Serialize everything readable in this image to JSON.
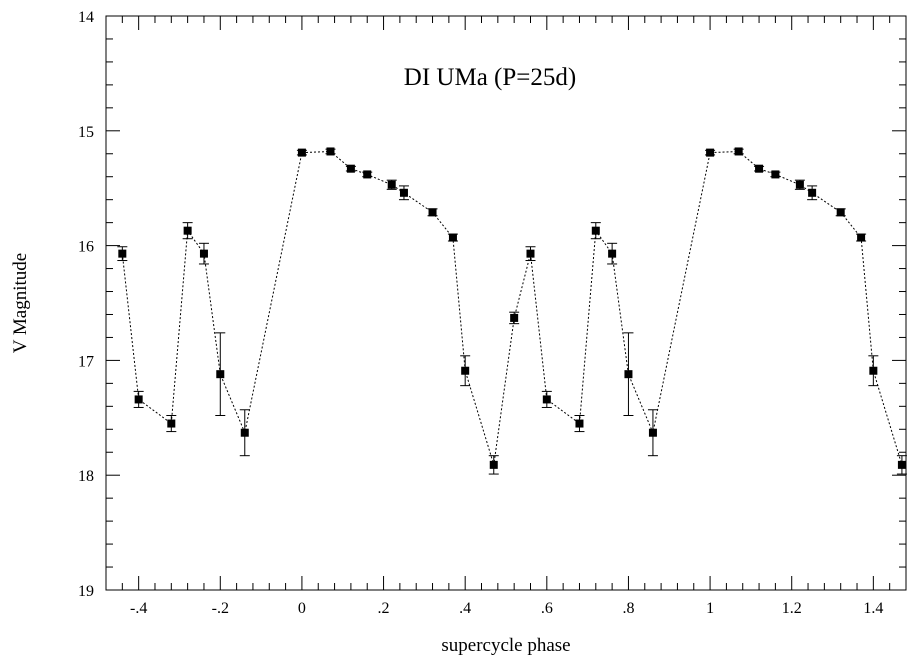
{
  "chart_data": {
    "type": "scatter",
    "title": "DI UMa (P=25d)",
    "xlabel": "supercycle phase",
    "ylabel": "V Magnitude",
    "xlim": [
      -0.48,
      1.48
    ],
    "ylim": [
      14,
      19
    ],
    "y_inverted": true,
    "grid": false,
    "connecting_line": "dotted",
    "x_ticks": [
      {
        "value": -0.4,
        "label": "-.4"
      },
      {
        "value": -0.2,
        "label": "-.2"
      },
      {
        "value": 0,
        "label": "0"
      },
      {
        "value": 0.2,
        "label": ".2"
      },
      {
        "value": 0.4,
        "label": ".4"
      },
      {
        "value": 0.6,
        "label": ".6"
      },
      {
        "value": 0.8,
        "label": ".8"
      },
      {
        "value": 1,
        "label": "1"
      },
      {
        "value": 1.2,
        "label": "1.2"
      },
      {
        "value": 1.4,
        "label": "1.4"
      }
    ],
    "y_ticks": [
      {
        "value": 14,
        "label": "14"
      },
      {
        "value": 15,
        "label": "15"
      },
      {
        "value": 16,
        "label": "16"
      },
      {
        "value": 17,
        "label": "17"
      },
      {
        "value": 18,
        "label": "18"
      },
      {
        "value": 19,
        "label": "19"
      }
    ],
    "points": [
      {
        "x": -0.44,
        "y": 16.07,
        "err": 0.06
      },
      {
        "x": -0.4,
        "y": 17.34,
        "err": 0.07
      },
      {
        "x": -0.32,
        "y": 17.55,
        "err": 0.07
      },
      {
        "x": -0.28,
        "y": 15.87,
        "err": 0.07
      },
      {
        "x": -0.24,
        "y": 16.07,
        "err": 0.09
      },
      {
        "x": -0.2,
        "y": 17.12,
        "err": 0.36
      },
      {
        "x": -0.14,
        "y": 17.63,
        "err": 0.2
      },
      {
        "x": 0.0,
        "y": 15.19,
        "err": 0.02
      },
      {
        "x": 0.07,
        "y": 15.18,
        "err": 0.02
      },
      {
        "x": 0.12,
        "y": 15.33,
        "err": 0.02
      },
      {
        "x": 0.16,
        "y": 15.38,
        "err": 0.02
      },
      {
        "x": 0.22,
        "y": 15.47,
        "err": 0.04
      },
      {
        "x": 0.25,
        "y": 15.54,
        "err": 0.06
      },
      {
        "x": 0.32,
        "y": 15.71,
        "err": 0.03
      },
      {
        "x": 0.37,
        "y": 15.93,
        "err": 0.03
      },
      {
        "x": 0.4,
        "y": 17.09,
        "err": 0.13
      },
      {
        "x": 0.47,
        "y": 17.91,
        "err": 0.08
      },
      {
        "x": 0.52,
        "y": 16.63,
        "err": 0.05
      },
      {
        "x": 0.56,
        "y": 16.07,
        "err": 0.06
      },
      {
        "x": 0.6,
        "y": 17.34,
        "err": 0.07
      },
      {
        "x": 0.68,
        "y": 17.55,
        "err": 0.07
      },
      {
        "x": 0.72,
        "y": 15.87,
        "err": 0.07
      },
      {
        "x": 0.76,
        "y": 16.07,
        "err": 0.09
      },
      {
        "x": 0.8,
        "y": 17.12,
        "err": 0.36
      },
      {
        "x": 0.86,
        "y": 17.63,
        "err": 0.2
      },
      {
        "x": 1.0,
        "y": 15.19,
        "err": 0.02
      },
      {
        "x": 1.07,
        "y": 15.18,
        "err": 0.02
      },
      {
        "x": 1.12,
        "y": 15.33,
        "err": 0.02
      },
      {
        "x": 1.16,
        "y": 15.38,
        "err": 0.02
      },
      {
        "x": 1.22,
        "y": 15.47,
        "err": 0.04
      },
      {
        "x": 1.25,
        "y": 15.54,
        "err": 0.06
      },
      {
        "x": 1.32,
        "y": 15.71,
        "err": 0.03
      },
      {
        "x": 1.37,
        "y": 15.93,
        "err": 0.03
      },
      {
        "x": 1.4,
        "y": 17.09,
        "err": 0.13
      },
      {
        "x": 1.47,
        "y": 17.91,
        "err": 0.08
      }
    ]
  }
}
